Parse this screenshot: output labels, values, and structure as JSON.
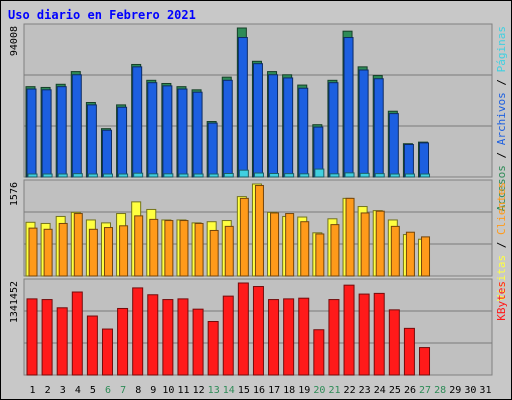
{
  "chart_data": {
    "type": "bar",
    "title": "Uso diario en Febrero 2021",
    "days": [
      "1",
      "2",
      "3",
      "4",
      "5",
      "6",
      "7",
      "8",
      "9",
      "10",
      "11",
      "12",
      "13",
      "14",
      "15",
      "16",
      "17",
      "18",
      "19",
      "20",
      "21",
      "22",
      "23",
      "24",
      "25",
      "26",
      "27",
      "28",
      "29",
      "30",
      "31"
    ],
    "weekend_days": [
      "6",
      "7",
      "13",
      "14",
      "20",
      "21",
      "27",
      "28"
    ],
    "colors": {
      "accesos": "#2e8b57",
      "archivos": "#1c5fe0",
      "paginas": "#40d0e0",
      "visitas": "#ffff40",
      "clientes": "#ff9a1a",
      "kbytes": "#ff1a1a",
      "weekend_text": "#2e8b57"
    },
    "panels": [
      {
        "id": "top",
        "ymax_label": "94008",
        "ymax": 94008,
        "legend": [
          {
            "text": "Accesos",
            "color": "#2e8b57"
          },
          {
            "text": " / ",
            "color": "#000000"
          },
          {
            "text": "Archivos",
            "color": "#1c5fe0"
          },
          {
            "text": " / ",
            "color": "#000000"
          },
          {
            "text": "Páginas",
            "color": "#40d0e0"
          }
        ],
        "series": [
          {
            "name": "Accesos",
            "values": [
              57000,
              56500,
              58500,
              66500,
              47000,
              30500,
              45500,
              71000,
              61000,
              59000,
              57000,
              55000,
              35000,
              63000,
              94008,
              73000,
              66500,
              64500,
              58000,
              33000,
              61000,
              92000,
              69500,
              64000,
              41500,
              21000,
              22000,
              0,
              0,
              0,
              0
            ]
          },
          {
            "name": "Archivos",
            "values": [
              55500,
              55000,
              57000,
              64500,
              45500,
              29500,
              44000,
              69500,
              59500,
              57500,
              55500,
              53500,
              34000,
              61000,
              88000,
              71500,
              64500,
              62500,
              56000,
              31500,
              59500,
              88000,
              67500,
              62000,
              40000,
              20500,
              21500,
              0,
              0,
              0,
              0
            ]
          },
          {
            "name": "Páginas",
            "values": [
              1800,
              1800,
              1900,
              2100,
              1600,
              1200,
              1600,
              2400,
              2000,
              2000,
              1900,
              1800,
              1300,
              2200,
              4300,
              2500,
              2200,
              2100,
              2000,
              5000,
              2000,
              2600,
              2300,
              2100,
              1500,
              900,
              900,
              0,
              0,
              0,
              0
            ]
          }
        ]
      },
      {
        "id": "middle",
        "ymax_label": "1576",
        "ymax": 1576,
        "legend": [
          {
            "text": "Visitas",
            "color": "#ffff40"
          },
          {
            "text": " / ",
            "color": "#000000"
          },
          {
            "text": "Clientes",
            "color": "#ff9a1a"
          }
        ],
        "series": [
          {
            "name": "Visitas",
            "values": [
              920,
              900,
              1020,
              1090,
              960,
              910,
              1070,
              1270,
              1140,
              960,
              960,
              910,
              930,
              950,
              1360,
              1576,
              1090,
              1020,
              1010,
              740,
              980,
              1330,
              1190,
              1120,
              960,
              710,
              630,
              0,
              0,
              0,
              0
            ]
          },
          {
            "name": "Clientes",
            "values": [
              820,
              800,
              900,
              1070,
              800,
              830,
              860,
              1030,
              970,
              950,
              950,
              900,
              780,
              850,
              1330,
              1550,
              1080,
              1070,
              930,
              720,
              880,
              1330,
              1080,
              1110,
              850,
              750,
              670,
              0,
              0,
              0,
              0
            ]
          }
        ]
      },
      {
        "id": "bottom",
        "ymax_label": "1341452",
        "ymax": 1341452,
        "legend": [
          {
            "text": "KBytes",
            "color": "#ff1a1a"
          }
        ],
        "series": [
          {
            "name": "KBytes",
            "values": [
              1110000,
              1100000,
              980000,
              1210000,
              860000,
              670000,
              970000,
              1270000,
              1170000,
              1100000,
              1110000,
              960000,
              780000,
              1150000,
              1341452,
              1290000,
              1100000,
              1110000,
              1120000,
              660000,
              1100000,
              1310000,
              1180000,
              1190000,
              950000,
              680000,
              400000,
              0,
              0,
              0,
              0
            ]
          }
        ]
      }
    ]
  }
}
